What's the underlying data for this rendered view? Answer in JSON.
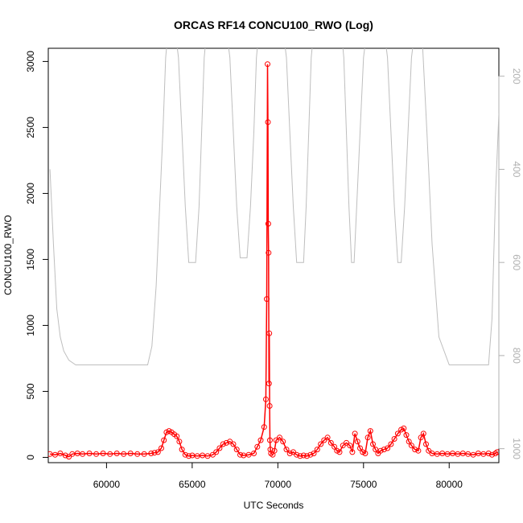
{
  "chart_data": {
    "type": "line",
    "title": "ORCAS RF14 CONCU100_RWO (Log)",
    "xlabel": "UTC Seconds",
    "ylabel": "CONCU100_RWO",
    "xlim": [
      56600,
      82900
    ],
    "ylim": [
      -40,
      3100
    ],
    "y2lim": [
      1030,
      140
    ],
    "x_ticks": [
      60000,
      65000,
      70000,
      75000,
      80000
    ],
    "y_ticks": [
      0,
      500,
      1000,
      1500,
      2000,
      2500,
      3000
    ],
    "y2_ticks": [
      200,
      400,
      600,
      800,
      1000
    ],
    "series": [
      {
        "role": "primary",
        "color": "#ff0000",
        "marker": "open-circle",
        "x": [
          56700,
          57000,
          57300,
          57600,
          57800,
          58000,
          58300,
          58600,
          59000,
          59400,
          59800,
          60200,
          60600,
          61000,
          61400,
          61800,
          62200,
          62600,
          62800,
          63000,
          63200,
          63350,
          63500,
          63650,
          63800,
          63950,
          64100,
          64250,
          64400,
          64600,
          64800,
          65000,
          65300,
          65600,
          65900,
          66200,
          66400,
          66600,
          66800,
          67000,
          67200,
          67400,
          67600,
          67800,
          68000,
          68300,
          68600,
          68800,
          69000,
          69200,
          69300,
          69350,
          69400,
          69420,
          69440,
          69460,
          69480,
          69500,
          69520,
          69540,
          69560,
          69600,
          69700,
          69800,
          69900,
          70100,
          70300,
          70500,
          70700,
          70900,
          71100,
          71300,
          71500,
          71700,
          71900,
          72100,
          72300,
          72500,
          72700,
          72900,
          73100,
          73300,
          73450,
          73600,
          73800,
          74000,
          74200,
          74350,
          74500,
          74650,
          74800,
          74950,
          75100,
          75250,
          75400,
          75550,
          75700,
          75850,
          76000,
          76200,
          76400,
          76600,
          76800,
          77000,
          77200,
          77350,
          77500,
          77650,
          77800,
          78000,
          78200,
          78350,
          78500,
          78650,
          78800,
          79000,
          79300,
          79600,
          79900,
          80200,
          80500,
          80800,
          81100,
          81400,
          81700,
          82000,
          82300,
          82500,
          82700,
          82800
        ],
        "y": [
          25,
          20,
          30,
          15,
          5,
          25,
          30,
          25,
          30,
          25,
          30,
          25,
          30,
          25,
          30,
          25,
          25,
          30,
          35,
          40,
          70,
          130,
          190,
          200,
          190,
          175,
          160,
          120,
          60,
          20,
          10,
          15,
          10,
          15,
          10,
          20,
          40,
          70,
          100,
          110,
          120,
          100,
          60,
          20,
          15,
          20,
          30,
          80,
          130,
          230,
          440,
          1200,
          2980,
          2540,
          1770,
          1550,
          560,
          940,
          390,
          130,
          60,
          30,
          20,
          50,
          130,
          150,
          120,
          60,
          30,
          40,
          20,
          10,
          15,
          10,
          20,
          30,
          60,
          100,
          130,
          150,
          110,
          80,
          50,
          40,
          90,
          110,
          90,
          40,
          180,
          120,
          70,
          40,
          30,
          150,
          200,
          100,
          60,
          30,
          50,
          60,
          70,
          100,
          140,
          180,
          210,
          220,
          170,
          120,
          90,
          60,
          50,
          150,
          180,
          100,
          50,
          30,
          25,
          30,
          25,
          30,
          25,
          30,
          25,
          20,
          30,
          25,
          30,
          20,
          30,
          40
        ]
      },
      {
        "role": "secondary",
        "color": "#bebebe",
        "x": [
          56700,
          56900,
          57100,
          57300,
          57500,
          57800,
          58200,
          58600,
          59400,
          60200,
          61000,
          61800,
          62400,
          62650,
          62900,
          63100,
          63300,
          63450,
          63600,
          63800,
          64000,
          64200,
          64400,
          64600,
          64800,
          65000,
          65200,
          65400,
          65550,
          65700,
          65850,
          66000,
          66200,
          66400,
          66600,
          66800,
          67000,
          67200,
          67400,
          67600,
          67800,
          68000,
          68200,
          68400,
          68600,
          68750,
          68900,
          69050,
          69200,
          69350,
          69500,
          69700,
          69900,
          70100,
          70300,
          70500,
          70700,
          70900,
          71100,
          71300,
          71500,
          71650,
          71800,
          71950,
          72100,
          72300,
          72500,
          72700,
          72900,
          73100,
          73300,
          73500,
          73700,
          73850,
          74000,
          74150,
          74300,
          74450,
          74600,
          74800,
          75000,
          75200,
          75400,
          75600,
          75800,
          76000,
          76200,
          76400,
          76600,
          76800,
          77000,
          77200,
          77400,
          77600,
          77800,
          78000,
          78200,
          78400,
          78700,
          79000,
          79400,
          80000,
          80600,
          81200,
          81800,
          82300,
          82500,
          82700,
          82900
        ],
        "y": [
          400,
          560,
          700,
          760,
          790,
          810,
          820,
          820,
          820,
          820,
          820,
          820,
          820,
          780,
          650,
          480,
          310,
          160,
          100,
          100,
          100,
          160,
          320,
          480,
          600,
          600,
          600,
          480,
          320,
          160,
          100,
          100,
          100,
          100,
          100,
          100,
          100,
          160,
          320,
          480,
          590,
          590,
          590,
          480,
          320,
          160,
          100,
          100,
          100,
          100,
          100,
          100,
          100,
          100,
          100,
          160,
          320,
          480,
          600,
          600,
          600,
          480,
          320,
          160,
          100,
          100,
          100,
          100,
          100,
          100,
          100,
          100,
          100,
          160,
          320,
          480,
          600,
          600,
          480,
          320,
          160,
          100,
          100,
          100,
          100,
          100,
          100,
          160,
          320,
          480,
          600,
          600,
          480,
          320,
          160,
          100,
          100,
          100,
          320,
          560,
          760,
          820,
          820,
          820,
          820,
          820,
          720,
          460,
          280
        ]
      }
    ],
    "grid": false,
    "legend": "none"
  }
}
